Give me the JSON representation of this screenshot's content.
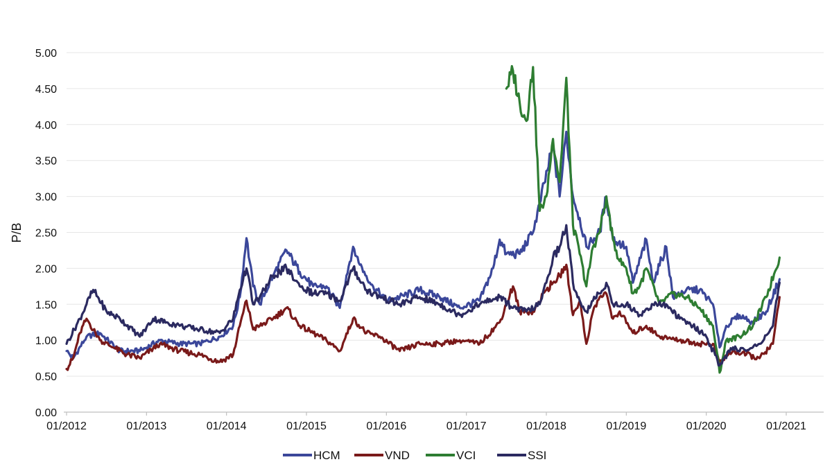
{
  "chart_data": {
    "type": "line",
    "ylabel": "P/B",
    "ylim": [
      0,
      5
    ],
    "y_ticks": [
      "0.00",
      "0.50",
      "1.00",
      "1.50",
      "2.00",
      "2.50",
      "3.00",
      "3.50",
      "4.00",
      "4.50",
      "5.00"
    ],
    "x_ticks": [
      "01/2012",
      "01/2013",
      "01/2014",
      "01/2015",
      "01/2016",
      "01/2017",
      "01/2018",
      "01/2019",
      "01/2020",
      "01/2021"
    ],
    "x_range": [
      "2012-01",
      "2021-03"
    ],
    "grid": true,
    "legend": "bottom",
    "series": [
      {
        "name": "HCM",
        "color": "#3b479a",
        "points": [
          [
            "2012-01",
            0.85
          ],
          [
            "2012-02",
            0.75
          ],
          [
            "2012-04",
            1.05
          ],
          [
            "2012-06",
            1.1
          ],
          [
            "2012-09",
            0.85
          ],
          [
            "2012-12",
            0.85
          ],
          [
            "2013-03",
            1.0
          ],
          [
            "2013-06",
            0.95
          ],
          [
            "2013-09",
            0.95
          ],
          [
            "2013-12",
            1.05
          ],
          [
            "2014-02",
            1.2
          ],
          [
            "2014-03",
            1.6
          ],
          [
            "2014-04",
            2.42
          ],
          [
            "2014-05",
            1.75
          ],
          [
            "2014-06",
            1.5
          ],
          [
            "2014-08",
            1.9
          ],
          [
            "2014-10",
            2.25
          ],
          [
            "2014-12",
            1.95
          ],
          [
            "2015-02",
            1.75
          ],
          [
            "2015-04",
            1.75
          ],
          [
            "2015-06",
            1.45
          ],
          [
            "2015-07",
            1.9
          ],
          [
            "2015-08",
            2.3
          ],
          [
            "2015-09",
            2.05
          ],
          [
            "2015-11",
            1.75
          ],
          [
            "2016-01",
            1.55
          ],
          [
            "2016-03",
            1.6
          ],
          [
            "2016-06",
            1.7
          ],
          [
            "2016-09",
            1.6
          ],
          [
            "2016-12",
            1.45
          ],
          [
            "2017-03",
            1.55
          ],
          [
            "2017-05",
            2.0
          ],
          [
            "2017-06",
            2.4
          ],
          [
            "2017-07",
            2.2
          ],
          [
            "2017-09",
            2.2
          ],
          [
            "2017-11",
            2.5
          ],
          [
            "2017-12",
            2.9
          ],
          [
            "2018-02",
            3.7
          ],
          [
            "2018-03",
            3.0
          ],
          [
            "2018-04",
            3.9
          ],
          [
            "2018-05",
            3.0
          ],
          [
            "2018-06",
            2.7
          ],
          [
            "2018-07",
            2.3
          ],
          [
            "2018-09",
            2.5
          ],
          [
            "2018-10",
            3.0
          ],
          [
            "2018-11",
            2.4
          ],
          [
            "2019-01",
            2.3
          ],
          [
            "2019-02",
            1.8
          ],
          [
            "2019-04",
            2.4
          ],
          [
            "2019-05",
            1.8
          ],
          [
            "2019-07",
            2.3
          ],
          [
            "2019-08",
            1.6
          ],
          [
            "2019-10",
            1.7
          ],
          [
            "2019-12",
            1.7
          ],
          [
            "2020-02",
            1.5
          ],
          [
            "2020-03",
            0.9
          ],
          [
            "2020-04",
            1.2
          ],
          [
            "2020-06",
            1.35
          ],
          [
            "2020-08",
            1.25
          ],
          [
            "2020-10",
            1.4
          ],
          [
            "2020-12",
            1.85
          ]
        ]
      },
      {
        "name": "VND",
        "color": "#7a1a1a",
        "points": [
          [
            "2012-01",
            0.6
          ],
          [
            "2012-02",
            0.75
          ],
          [
            "2012-03",
            1.1
          ],
          [
            "2012-04",
            1.3
          ],
          [
            "2012-06",
            1.0
          ],
          [
            "2012-08",
            0.9
          ],
          [
            "2012-10",
            0.8
          ],
          [
            "2012-12",
            0.75
          ],
          [
            "2013-03",
            0.95
          ],
          [
            "2013-06",
            0.85
          ],
          [
            "2013-09",
            0.8
          ],
          [
            "2013-12",
            0.7
          ],
          [
            "2014-02",
            0.8
          ],
          [
            "2014-03",
            1.2
          ],
          [
            "2014-04",
            1.55
          ],
          [
            "2014-05",
            1.15
          ],
          [
            "2014-06",
            1.2
          ],
          [
            "2014-08",
            1.3
          ],
          [
            "2014-10",
            1.45
          ],
          [
            "2014-12",
            1.2
          ],
          [
            "2015-02",
            1.1
          ],
          [
            "2015-04",
            1.0
          ],
          [
            "2015-06",
            0.85
          ],
          [
            "2015-08",
            1.3
          ],
          [
            "2015-10",
            1.1
          ],
          [
            "2015-12",
            1.05
          ],
          [
            "2016-03",
            0.85
          ],
          [
            "2016-06",
            0.95
          ],
          [
            "2016-09",
            0.95
          ],
          [
            "2016-12",
            1.0
          ],
          [
            "2017-03",
            0.95
          ],
          [
            "2017-06",
            1.25
          ],
          [
            "2017-07",
            1.5
          ],
          [
            "2017-08",
            1.75
          ],
          [
            "2017-09",
            1.4
          ],
          [
            "2017-11",
            1.4
          ],
          [
            "2018-01",
            1.7
          ],
          [
            "2018-02",
            1.8
          ],
          [
            "2018-03",
            1.9
          ],
          [
            "2018-04",
            2.05
          ],
          [
            "2018-05",
            1.35
          ],
          [
            "2018-06",
            1.55
          ],
          [
            "2018-07",
            0.95
          ],
          [
            "2018-08",
            1.4
          ],
          [
            "2018-09",
            1.6
          ],
          [
            "2018-10",
            1.65
          ],
          [
            "2018-11",
            1.3
          ],
          [
            "2018-12",
            1.4
          ],
          [
            "2019-02",
            1.1
          ],
          [
            "2019-04",
            1.2
          ],
          [
            "2019-06",
            1.05
          ],
          [
            "2019-09",
            1.0
          ],
          [
            "2019-12",
            0.95
          ],
          [
            "2020-02",
            0.95
          ],
          [
            "2020-03",
            0.7
          ],
          [
            "2020-05",
            0.85
          ],
          [
            "2020-07",
            0.8
          ],
          [
            "2020-09",
            0.75
          ],
          [
            "2020-11",
            0.95
          ],
          [
            "2020-12",
            1.6
          ]
        ]
      },
      {
        "name": "VCI",
        "color": "#2e7d32",
        "points": [
          [
            "2017-07",
            4.5
          ],
          [
            "2017-08",
            4.75
          ],
          [
            "2017-09",
            4.3
          ],
          [
            "2017-10",
            4.05
          ],
          [
            "2017-11",
            4.8
          ],
          [
            "2017-12",
            2.8
          ],
          [
            "2018-01",
            3.0
          ],
          [
            "2018-02",
            3.8
          ],
          [
            "2018-03",
            3.2
          ],
          [
            "2018-04",
            4.65
          ],
          [
            "2018-05",
            2.6
          ],
          [
            "2018-06",
            2.2
          ],
          [
            "2018-07",
            1.75
          ],
          [
            "2018-08",
            2.3
          ],
          [
            "2018-09",
            2.5
          ],
          [
            "2018-10",
            3.0
          ],
          [
            "2018-11",
            2.4
          ],
          [
            "2018-12",
            2.1
          ],
          [
            "2019-01",
            2.0
          ],
          [
            "2019-02",
            1.65
          ],
          [
            "2019-03",
            1.75
          ],
          [
            "2019-04",
            2.0
          ],
          [
            "2019-06",
            1.5
          ],
          [
            "2019-08",
            1.65
          ],
          [
            "2019-10",
            1.6
          ],
          [
            "2019-12",
            1.45
          ],
          [
            "2020-02",
            1.2
          ],
          [
            "2020-03",
            0.55
          ],
          [
            "2020-04",
            1.0
          ],
          [
            "2020-06",
            1.05
          ],
          [
            "2020-08",
            1.2
          ],
          [
            "2020-10",
            1.6
          ],
          [
            "2020-12",
            2.15
          ]
        ]
      },
      {
        "name": "SSI",
        "color": "#2b2a60",
        "points": [
          [
            "2012-01",
            0.95
          ],
          [
            "2012-03",
            1.3
          ],
          [
            "2012-04",
            1.5
          ],
          [
            "2012-05",
            1.7
          ],
          [
            "2012-07",
            1.4
          ],
          [
            "2012-09",
            1.3
          ],
          [
            "2012-12",
            1.05
          ],
          [
            "2013-02",
            1.3
          ],
          [
            "2013-04",
            1.25
          ],
          [
            "2013-06",
            1.2
          ],
          [
            "2013-09",
            1.15
          ],
          [
            "2013-12",
            1.1
          ],
          [
            "2014-02",
            1.3
          ],
          [
            "2014-03",
            1.7
          ],
          [
            "2014-04",
            2.0
          ],
          [
            "2014-05",
            1.5
          ],
          [
            "2014-06",
            1.6
          ],
          [
            "2014-08",
            1.9
          ],
          [
            "2014-10",
            2.0
          ],
          [
            "2014-12",
            1.75
          ],
          [
            "2015-02",
            1.65
          ],
          [
            "2015-04",
            1.65
          ],
          [
            "2015-06",
            1.55
          ],
          [
            "2015-08",
            2.0
          ],
          [
            "2015-10",
            1.7
          ],
          [
            "2015-12",
            1.6
          ],
          [
            "2016-03",
            1.5
          ],
          [
            "2016-06",
            1.6
          ],
          [
            "2016-09",
            1.5
          ],
          [
            "2016-12",
            1.35
          ],
          [
            "2017-03",
            1.5
          ],
          [
            "2017-06",
            1.6
          ],
          [
            "2017-08",
            1.45
          ],
          [
            "2017-10",
            1.4
          ],
          [
            "2017-12",
            1.5
          ],
          [
            "2018-01",
            1.8
          ],
          [
            "2018-02",
            2.15
          ],
          [
            "2018-03",
            2.3
          ],
          [
            "2018-04",
            2.6
          ],
          [
            "2018-05",
            1.8
          ],
          [
            "2018-06",
            1.55
          ],
          [
            "2018-07",
            1.4
          ],
          [
            "2018-08",
            1.55
          ],
          [
            "2018-09",
            1.65
          ],
          [
            "2018-10",
            1.8
          ],
          [
            "2018-11",
            1.5
          ],
          [
            "2019-01",
            1.5
          ],
          [
            "2019-03",
            1.35
          ],
          [
            "2019-05",
            1.5
          ],
          [
            "2019-07",
            1.5
          ],
          [
            "2019-09",
            1.3
          ],
          [
            "2019-11",
            1.2
          ],
          [
            "2020-01",
            1.05
          ],
          [
            "2020-03",
            0.65
          ],
          [
            "2020-05",
            0.9
          ],
          [
            "2020-07",
            0.85
          ],
          [
            "2020-09",
            0.95
          ],
          [
            "2020-11",
            1.2
          ],
          [
            "2020-12",
            1.8
          ]
        ]
      }
    ]
  }
}
